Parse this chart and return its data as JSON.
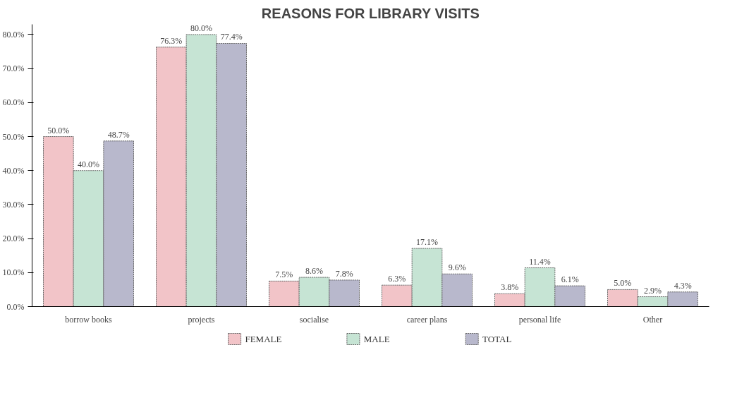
{
  "chart_data": {
    "type": "bar",
    "title": "REASONS FOR LIBRARY VISITS",
    "categories": [
      "borrow books",
      "projects",
      "socialise",
      "career plans",
      "personal life",
      "Other"
    ],
    "series": [
      {
        "name": "FEMALE",
        "color": "#f2c4c8",
        "values": [
          50.0,
          76.3,
          7.5,
          6.3,
          3.8,
          5.0
        ],
        "value_labels": [
          "50.0%",
          "76.3%",
          "7.5%",
          "6.3%",
          "3.8%",
          "5.0%"
        ]
      },
      {
        "name": "MALE",
        "color": "#c6e4d4",
        "values": [
          40.0,
          80.0,
          8.6,
          17.1,
          11.4,
          2.9
        ],
        "value_labels": [
          "40.0%",
          "80.0%",
          "8.6%",
          "17.1%",
          "11.4%",
          "2.9%"
        ]
      },
      {
        "name": "TOTAL",
        "color": "#b8b8cc",
        "values": [
          48.7,
          77.4,
          7.8,
          9.6,
          6.1,
          4.3
        ],
        "value_labels": [
          "48.7%",
          "77.4%",
          "7.8%",
          "9.6%",
          "6.1%",
          "4.3%"
        ]
      }
    ],
    "ylim": [
      0,
      83
    ],
    "yticks": [
      {
        "value": 0,
        "label": "0.0%"
      },
      {
        "value": 10,
        "label": "10.0%"
      },
      {
        "value": 20,
        "label": "20.0%"
      },
      {
        "value": 30,
        "label": "30.0%"
      },
      {
        "value": 40,
        "label": "40.0%"
      },
      {
        "value": 50,
        "label": "50.0%"
      },
      {
        "value": 60,
        "label": "60.0%"
      },
      {
        "value": 70,
        "label": "70.0%"
      },
      {
        "value": 80,
        "label": "80.0%"
      }
    ],
    "grid": false,
    "legend": "bottom"
  }
}
